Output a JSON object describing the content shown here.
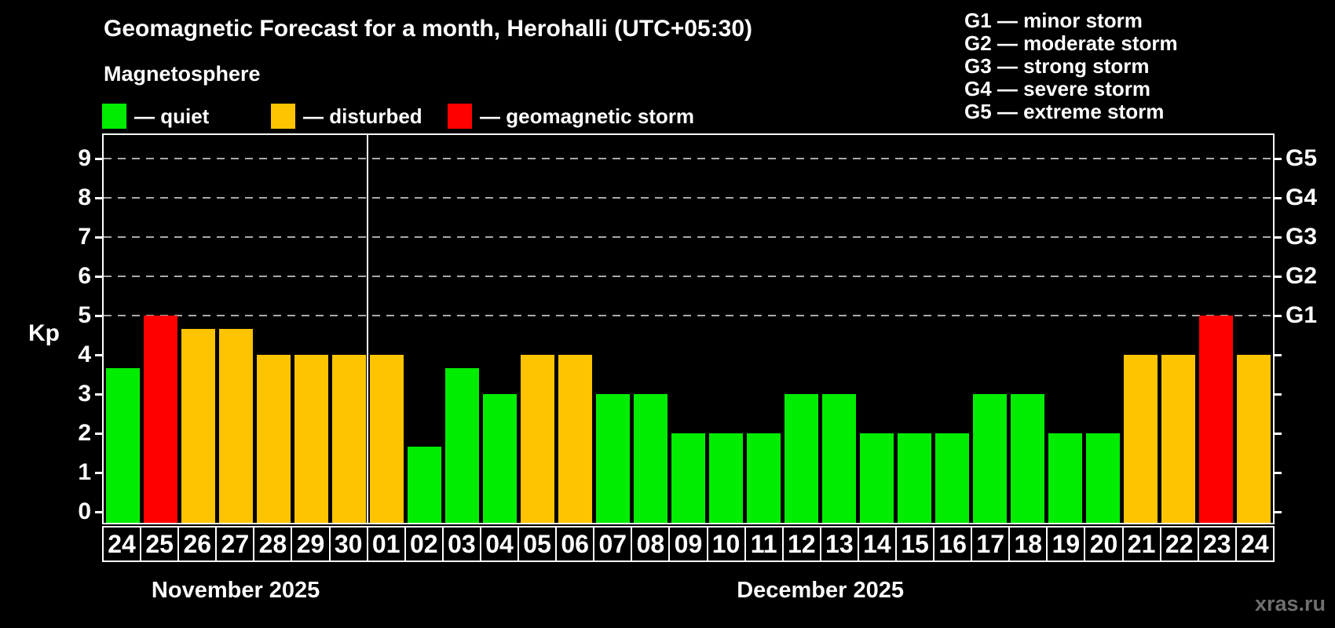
{
  "title": "Geomagnetic Forecast for a month, Herohalli (UTC+05:30)",
  "subtitle": "Magnetosphere",
  "legend": {
    "quiet_label": "— quiet",
    "disturbed_label": "— disturbed",
    "storm_label": "— geomagnetic storm"
  },
  "storm_scale_legend": [
    "G1 — minor storm",
    "G2 — moderate storm",
    "G3 — strong storm",
    "G4 — severe storm",
    "G5 — extreme storm"
  ],
  "watermark": "xras.ru",
  "chart_data": {
    "type": "bar",
    "ylabel": "Kp",
    "ylim": [
      0,
      9.6
    ],
    "legend_position": "top",
    "grid": "horizontal dashed lines at Kp 5-9 only",
    "y_ticks": [
      0,
      1,
      2,
      3,
      4,
      5,
      6,
      7,
      8,
      9
    ],
    "right_axis": [
      {
        "kp": 5,
        "label": "G1"
      },
      {
        "kp": 6,
        "label": "G2"
      },
      {
        "kp": 7,
        "label": "G3"
      },
      {
        "kp": 8,
        "label": "G4"
      },
      {
        "kp": 9,
        "label": "G5"
      }
    ],
    "months": [
      {
        "label": "November 2025",
        "days": 7
      },
      {
        "label": "December 2025",
        "days": 24
      }
    ],
    "categories": [
      "24",
      "25",
      "26",
      "27",
      "28",
      "29",
      "30",
      "01",
      "02",
      "03",
      "04",
      "05",
      "06",
      "07",
      "08",
      "09",
      "10",
      "11",
      "12",
      "13",
      "14",
      "15",
      "16",
      "17",
      "18",
      "19",
      "20",
      "21",
      "22",
      "23",
      "24"
    ],
    "values": [
      3.67,
      5,
      4.67,
      4.67,
      4,
      4,
      4,
      4,
      1.67,
      3.67,
      3,
      4,
      4,
      3,
      3,
      2,
      2,
      2,
      3,
      3,
      2,
      2,
      2,
      3,
      3,
      2,
      2,
      4,
      4,
      5,
      4
    ],
    "statuses": [
      "quiet",
      "storm",
      "disturbed",
      "disturbed",
      "disturbed",
      "disturbed",
      "disturbed",
      "disturbed",
      "quiet",
      "quiet",
      "quiet",
      "disturbed",
      "disturbed",
      "quiet",
      "quiet",
      "quiet",
      "quiet",
      "quiet",
      "quiet",
      "quiet",
      "quiet",
      "quiet",
      "quiet",
      "quiet",
      "quiet",
      "quiet",
      "quiet",
      "disturbed",
      "disturbed",
      "storm",
      "disturbed"
    ],
    "colors": {
      "quiet": "#00ed00",
      "disturbed": "#ffc400",
      "storm": "#ff0000"
    }
  }
}
